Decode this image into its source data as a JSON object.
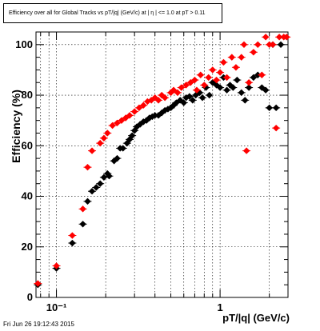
{
  "title": "Efficiency over all for Global Tracks vs pT/|q| (GeV/c) at |  η | <= 1.0 at pT > 0.11",
  "footer": "Fri Jun 26 19:12:43 2015",
  "chart_data": {
    "type": "scatter",
    "title": "Efficiency over all for Global Tracks vs pT/|q| (GeV/c) at |  η | <= 1.0 at pT > 0.11",
    "xlabel": "pT/|q| (GeV/c)",
    "ylabel": "Efficiency (%)",
    "xscale": "log",
    "xlim": [
      0.075,
      2.6
    ],
    "ylim": [
      0,
      105
    ],
    "grid": true,
    "x_tick_labels": [
      {
        "value": 0.1,
        "label": "10⁻¹"
      },
      {
        "value": 1,
        "label": "1"
      }
    ],
    "y_ticks": [
      0,
      20,
      40,
      60,
      80,
      100
    ],
    "series": [
      {
        "color": "#000000",
        "points": [
          [
            0.077,
            5
          ],
          [
            0.1,
            11.5
          ],
          [
            0.125,
            21.5
          ],
          [
            0.145,
            29
          ],
          [
            0.155,
            38
          ],
          [
            0.165,
            42
          ],
          [
            0.175,
            43.5
          ],
          [
            0.185,
            45
          ],
          [
            0.195,
            47.5
          ],
          [
            0.205,
            49
          ],
          [
            0.21,
            48
          ],
          [
            0.225,
            54
          ],
          [
            0.235,
            55
          ],
          [
            0.245,
            59
          ],
          [
            0.255,
            59
          ],
          [
            0.27,
            61
          ],
          [
            0.28,
            62.5
          ],
          [
            0.29,
            64
          ],
          [
            0.3,
            66
          ],
          [
            0.31,
            67.5
          ],
          [
            0.325,
            68.5
          ],
          [
            0.34,
            69.5
          ],
          [
            0.355,
            70
          ],
          [
            0.37,
            71
          ],
          [
            0.385,
            71.5
          ],
          [
            0.4,
            72
          ],
          [
            0.42,
            72
          ],
          [
            0.44,
            73
          ],
          [
            0.46,
            74
          ],
          [
            0.48,
            74.5
          ],
          [
            0.5,
            75
          ],
          [
            0.52,
            76
          ],
          [
            0.54,
            77
          ],
          [
            0.57,
            78
          ],
          [
            0.6,
            77
          ],
          [
            0.62,
            79
          ],
          [
            0.65,
            79.5
          ],
          [
            0.68,
            78
          ],
          [
            0.71,
            80
          ],
          [
            0.75,
            81
          ],
          [
            0.78,
            79
          ],
          [
            0.82,
            83
          ],
          [
            0.86,
            80
          ],
          [
            0.9,
            85
          ],
          [
            0.95,
            84
          ],
          [
            1.0,
            83
          ],
          [
            1.05,
            87
          ],
          [
            1.1,
            82
          ],
          [
            1.15,
            84
          ],
          [
            1.2,
            83
          ],
          [
            1.27,
            86
          ],
          [
            1.35,
            81
          ],
          [
            1.42,
            78
          ],
          [
            1.5,
            83
          ],
          [
            1.6,
            87
          ],
          [
            1.7,
            88
          ],
          [
            1.8,
            83
          ],
          [
            1.9,
            82
          ],
          [
            2.0,
            75
          ],
          [
            2.1,
            100
          ],
          [
            2.2,
            75
          ],
          [
            2.35,
            100
          ]
        ]
      },
      {
        "color": "#ff0000",
        "points": [
          [
            0.077,
            5.5
          ],
          [
            0.1,
            12.5
          ],
          [
            0.125,
            24.5
          ],
          [
            0.145,
            35
          ],
          [
            0.155,
            51.5
          ],
          [
            0.165,
            58
          ],
          [
            0.185,
            61
          ],
          [
            0.195,
            63
          ],
          [
            0.205,
            65
          ],
          [
            0.22,
            68
          ],
          [
            0.235,
            69
          ],
          [
            0.25,
            70
          ],
          [
            0.265,
            71
          ],
          [
            0.28,
            72
          ],
          [
            0.3,
            73.5
          ],
          [
            0.32,
            75
          ],
          [
            0.34,
            76
          ],
          [
            0.36,
            77.5
          ],
          [
            0.38,
            78
          ],
          [
            0.4,
            79
          ],
          [
            0.42,
            78
          ],
          [
            0.44,
            80
          ],
          [
            0.46,
            79
          ],
          [
            0.5,
            81
          ],
          [
            0.52,
            82
          ],
          [
            0.55,
            81
          ],
          [
            0.58,
            83
          ],
          [
            0.62,
            84
          ],
          [
            0.66,
            85
          ],
          [
            0.7,
            86
          ],
          [
            0.72,
            82
          ],
          [
            0.76,
            88
          ],
          [
            0.8,
            84
          ],
          [
            0.85,
            87
          ],
          [
            0.9,
            90
          ],
          [
            0.95,
            86
          ],
          [
            1.0,
            89
          ],
          [
            1.05,
            93
          ],
          [
            1.1,
            87
          ],
          [
            1.18,
            95
          ],
          [
            1.25,
            91
          ],
          [
            1.35,
            95
          ],
          [
            1.4,
            100
          ],
          [
            1.45,
            58
          ],
          [
            1.5,
            85
          ],
          [
            1.6,
            97
          ],
          [
            1.7,
            100
          ],
          [
            1.8,
            88
          ],
          [
            1.9,
            103
          ],
          [
            2.0,
            100
          ],
          [
            2.1,
            100
          ],
          [
            2.2,
            67
          ],
          [
            2.3,
            103
          ],
          [
            2.45,
            103
          ],
          [
            2.55,
            103
          ]
        ]
      }
    ]
  }
}
